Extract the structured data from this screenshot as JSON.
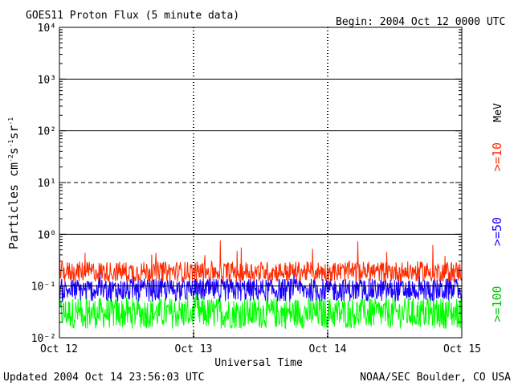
{
  "header": {
    "title": "GOES11 Proton Flux (5 minute data)",
    "begin": "Begin: 2004 Oct 12 0000 UTC"
  },
  "footer": {
    "updated": "Updated 2004 Oct 14 23:56:03 UTC",
    "credit": "NOAA/SEC Boulder, CO USA"
  },
  "colors": {
    "ge10": "#ff2a00",
    "ge50": "#1a00ff",
    "ge100": "#00ff00",
    "threshold_line": "#000000"
  },
  "chart_data": {
    "type": "line",
    "title": "GOES11 Proton Flux (5 minute data)",
    "xlabel": "Universal Time",
    "ylabel": "Particles cm⁻²s⁻¹sr⁻¹",
    "yscale": "log",
    "ylim": [
      0.01,
      10000
    ],
    "y_ticks": [
      "10⁻²",
      "10⁻¹",
      "10⁰",
      "10¹",
      "10²",
      "10³",
      "10⁴"
    ],
    "x_tick_labels": [
      "Oct 12",
      "Oct 13",
      "Oct 14",
      "Oct 15"
    ],
    "xlim": [
      "2004-10-12",
      "2004-10-15"
    ],
    "grid": "horizontal lines at decades, dashed at 10¹, dashed vertical day markers",
    "legend_placement": "right, vertical",
    "units_label": "MeV",
    "series": [
      {
        "name": ">=10",
        "color": "#ff2a00",
        "typical_range": [
          0.12,
          0.3
        ],
        "peak": 0.8
      },
      {
        "name": ">=50",
        "color": "#1a00ff",
        "typical_range": [
          0.05,
          0.14
        ],
        "peak": 0.2
      },
      {
        "name": ">=100",
        "color": "#00ff00",
        "typical_range": [
          0.015,
          0.06
        ],
        "peak": 0.09
      }
    ]
  }
}
